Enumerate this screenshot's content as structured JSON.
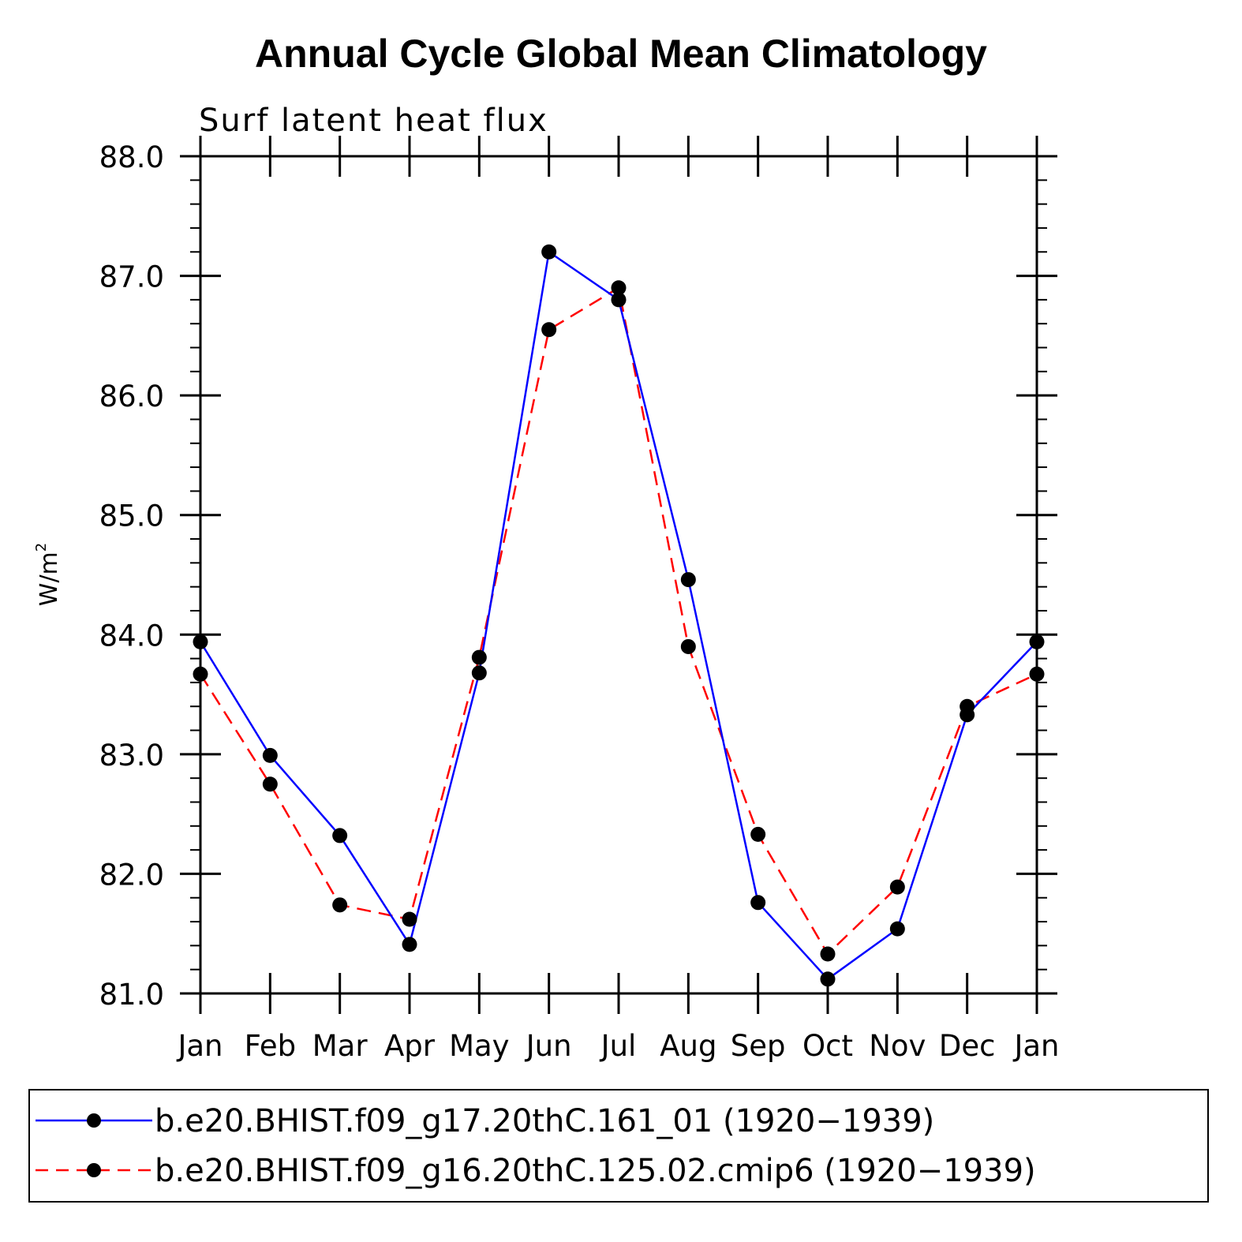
{
  "chart_data": {
    "type": "line",
    "title": "Annual Cycle Global Mean Climatology",
    "subtitle": "Surf latent heat flux",
    "ylabel": "W/m",
    "ylabel_superscript": "2",
    "ylim": [
      81.0,
      88.0
    ],
    "yticks": [
      "81.0",
      "82.0",
      "83.0",
      "84.0",
      "85.0",
      "86.0",
      "87.0",
      "88.0"
    ],
    "categories": [
      "Jan",
      "Feb",
      "Mar",
      "Apr",
      "May",
      "Jun",
      "Jul",
      "Aug",
      "Sep",
      "Oct",
      "Nov",
      "Dec",
      "Jan"
    ],
    "series": [
      {
        "name": "b.e20.BHIST.f09_g17.20thC.161_01 (1920−1939)",
        "color": "#0000ff",
        "dash": "solid",
        "values": [
          83.94,
          82.99,
          82.32,
          81.41,
          83.68,
          87.2,
          86.8,
          84.46,
          81.76,
          81.12,
          81.54,
          83.33,
          83.94
        ]
      },
      {
        "name": "b.e20.BHIST.f09_g16.20thC.125.02.cmip6 (1920−1939)",
        "color": "#ff0000",
        "dash": "dashed",
        "values": [
          83.67,
          82.75,
          81.74,
          81.62,
          83.81,
          86.55,
          86.9,
          83.9,
          82.33,
          81.33,
          81.89,
          83.4,
          83.67
        ]
      }
    ]
  }
}
